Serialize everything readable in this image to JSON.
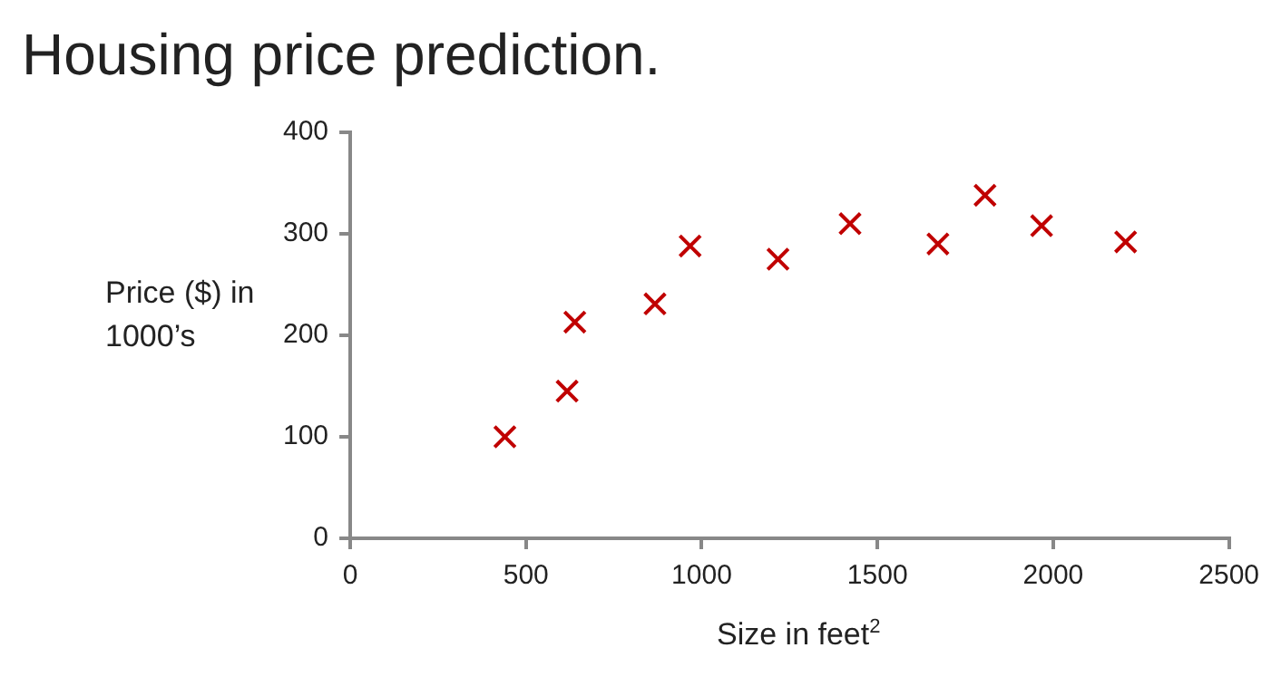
{
  "chart_data": {
    "type": "scatter",
    "title": "Housing price prediction.",
    "xlabel": "Size in feet$^{2}$",
    "ylabel": "Price ($) in 1000’s",
    "x": [
      440,
      617,
      639,
      867,
      967,
      1217,
      1422,
      1672,
      1806,
      1967,
      2206
    ],
    "series": [
      {
        "color": "#c00000",
        "values": [
          100,
          145,
          213,
          231,
          288,
          275,
          310,
          290,
          338,
          308,
          292
        ]
      }
    ],
    "xlim": [
      0,
      2500
    ],
    "xticks": [
      0,
      500,
      1000,
      1500,
      2000,
      2500
    ],
    "ylim": [
      0,
      400
    ],
    "yticks": [
      0,
      100,
      200,
      300,
      400
    ],
    "grid": false,
    "legend": false,
    "marker": "cross"
  }
}
